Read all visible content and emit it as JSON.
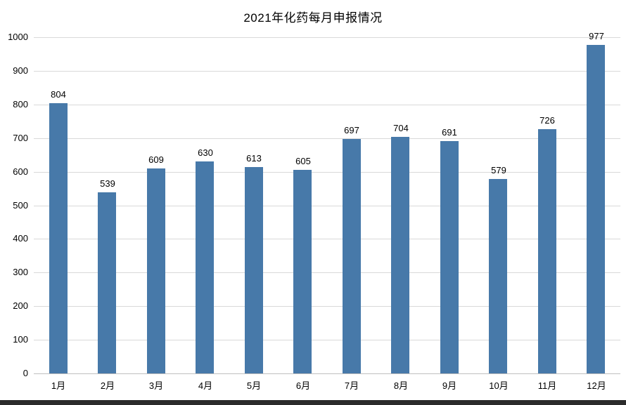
{
  "chart": {
    "title": "2021年化药每月申报情况"
  },
  "chart_data": {
    "type": "bar",
    "title": "2021年化药每月申报情况",
    "categories": [
      "1月",
      "2月",
      "3月",
      "4月",
      "5月",
      "6月",
      "7月",
      "8月",
      "9月",
      "10月",
      "11月",
      "12月"
    ],
    "values": [
      804,
      539,
      609,
      630,
      613,
      605,
      697,
      704,
      691,
      579,
      726,
      977
    ],
    "xlabel": "",
    "ylabel": "",
    "ylim": [
      0,
      1000
    ],
    "ytick_interval": 100,
    "ytick_labels": [
      "0",
      "100",
      "200",
      "300",
      "400",
      "500",
      "600",
      "700",
      "800",
      "900",
      "1000"
    ],
    "grid": true,
    "legend": "none",
    "bar_color": "#4779a9",
    "gridline_color": "#d9d9d9",
    "axis_line_color": "#bfbfbf",
    "label_color": "#000000"
  }
}
